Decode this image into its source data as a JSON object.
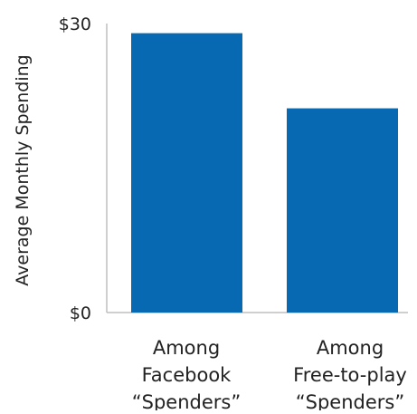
{
  "chart_data": {
    "type": "bar",
    "title": "",
    "ylabel": "Average Monthly Spending",
    "xlabel": "",
    "categories": [
      [
        "Among",
        "Facebook",
        "“Spenders”"
      ],
      [
        "Among",
        "Free-to-play",
        "“Spenders”"
      ]
    ],
    "values": [
      29,
      21.2
    ],
    "ylim": [
      0,
      30
    ],
    "y_ticks": [
      {
        "value": 0,
        "label": "$0"
      },
      {
        "value": 30,
        "label": "$30"
      }
    ],
    "grid": false,
    "bar_color": "#0669B2",
    "axis_color": "#BFBFBF"
  }
}
